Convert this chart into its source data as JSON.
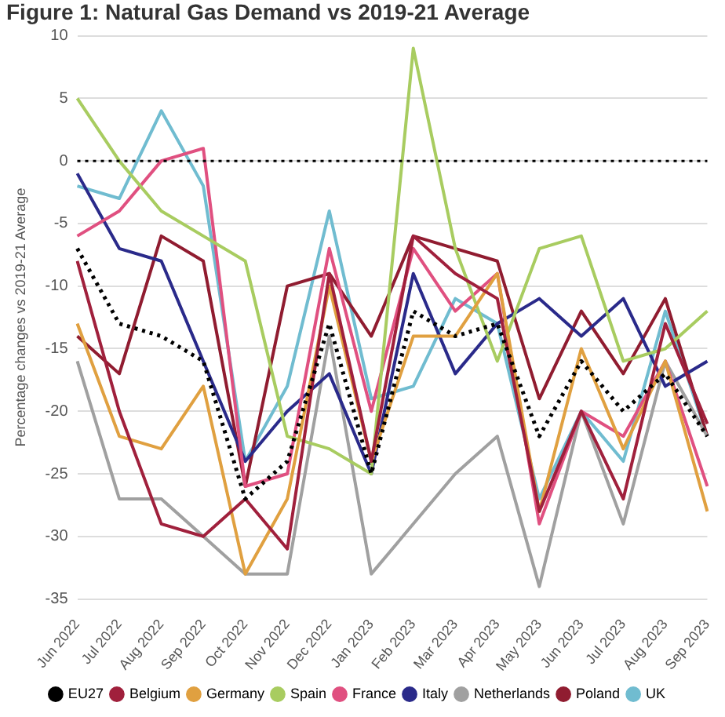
{
  "chart_data": {
    "type": "line",
    "title": "Figure 1: Natural Gas Demand vs 2019-21 Average",
    "ylabel": "Percentage changes vs 2019-21 Average",
    "categories": [
      "Jun 2022",
      "Jul 2022",
      "Aug 2022",
      "Sep 2022",
      "Oct 2022",
      "Nov 2022",
      "Dec 2022",
      "Jan 2023",
      "Feb 2023",
      "Mar 2023",
      "Apr 2023",
      "May 2023",
      "Jun 2023",
      "Jul 2023",
      "Aug 2023",
      "Sep 2023"
    ],
    "series": [
      {
        "name": "EU27",
        "color": "#000000",
        "line_style": "dotted",
        "values": [
          -7,
          -13,
          -14,
          -16,
          -27,
          -24,
          -13,
          -25,
          -12,
          -14,
          -13,
          -22,
          -16,
          -20,
          -17,
          -22
        ]
      },
      {
        "name": "Belgium",
        "color": "#a0203c",
        "values": [
          -8,
          -20,
          -29,
          -30,
          -27,
          -31,
          -9,
          -24,
          -6,
          -9,
          -11,
          -28,
          -20,
          -27,
          -13,
          -21
        ]
      },
      {
        "name": "Germany",
        "color": "#e0a040",
        "values": [
          -13,
          -22,
          -23,
          -18,
          -33,
          -27,
          -10,
          -24,
          -14,
          -14,
          -9,
          -28,
          -15,
          -23,
          -16,
          -28
        ]
      },
      {
        "name": "Spain",
        "color": "#a8cc60",
        "values": [
          5,
          0,
          -4,
          -6,
          -8,
          -22,
          -23,
          -25,
          9,
          -7,
          -16,
          -7,
          -6,
          -16,
          -15,
          -12
        ]
      },
      {
        "name": "France",
        "color": "#e05080",
        "values": [
          -6,
          -4,
          0,
          1,
          -26,
          -25,
          -7,
          -20,
          -7,
          -12,
          -9,
          -29,
          -20,
          -22,
          -16,
          -26
        ]
      },
      {
        "name": "Italy",
        "color": "#2a2a8a",
        "values": [
          -1,
          -7,
          -8,
          -16,
          -24,
          -20,
          -17,
          -25,
          -9,
          -17,
          -13,
          -11,
          -14,
          -11,
          -18,
          -16
        ]
      },
      {
        "name": "Netherlands",
        "color": "#a0a0a0",
        "values": [
          -16,
          -27,
          -27,
          -30,
          -33,
          -33,
          -14,
          -33,
          -29,
          -25,
          -22,
          -34,
          -20,
          -29,
          -16,
          -22
        ]
      },
      {
        "name": "Poland",
        "color": "#901c30",
        "values": [
          -14,
          -17,
          -6,
          -8,
          -26,
          -10,
          -9,
          -14,
          -6,
          -7,
          -8,
          -19,
          -12,
          -17,
          -11,
          -22
        ]
      },
      {
        "name": "UK",
        "color": "#70bcd0",
        "values": [
          -2,
          -3,
          4,
          -2,
          -24,
          -18,
          -4,
          -19,
          -18,
          -11,
          -13,
          -27,
          -20,
          -24,
          -12,
          -22
        ]
      }
    ],
    "ylim": [
      -35,
      10
    ],
    "yticks": [
      -35,
      -30,
      -25,
      -20,
      -15,
      -10,
      -5,
      0,
      5,
      10
    ],
    "grid": "y",
    "legend": "bottom",
    "marker": "none",
    "ref_lines": [
      {
        "axis": "y",
        "value": 0,
        "color": "#000000",
        "line_style": "dotted"
      }
    ]
  }
}
